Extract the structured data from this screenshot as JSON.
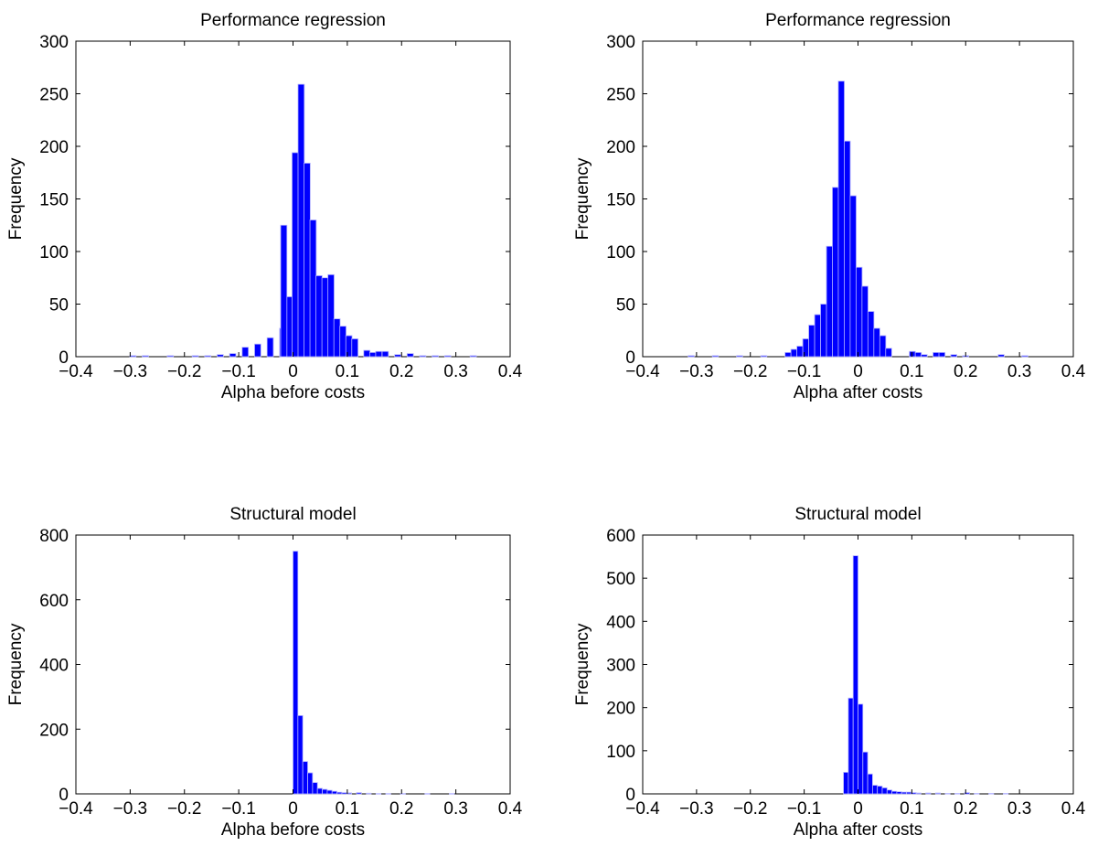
{
  "colors": {
    "bar_fill": "#0000ff",
    "bar_edge": "#b3b3ff",
    "axes": "#000000",
    "background": "#ffffff"
  },
  "chart_data": [
    {
      "type": "bar",
      "title": "Performance regression",
      "xlabel": "Alpha before costs",
      "ylabel": "Frequency",
      "xlim": [
        -0.4,
        0.4
      ],
      "ylim": [
        0,
        300
      ],
      "grid": false,
      "xticks": [
        "−0.4",
        "−0.3",
        "−0.2",
        "−0.1",
        "0",
        "0.1",
        "0.2",
        "0.3",
        "0.4"
      ],
      "yticks": [
        "0",
        "50",
        "100",
        "150",
        "200",
        "250",
        "300"
      ],
      "bins": [
        {
          "x": -0.295,
          "y": 1
        },
        {
          "x": -0.272,
          "y": 1
        },
        {
          "x": -0.226,
          "y": 1
        },
        {
          "x": -0.18,
          "y": 1
        },
        {
          "x": -0.157,
          "y": 1
        },
        {
          "x": -0.134,
          "y": 2
        },
        {
          "x": -0.111,
          "y": 3
        },
        {
          "x": -0.088,
          "y": 9
        },
        {
          "x": -0.065,
          "y": 12
        },
        {
          "x": -0.042,
          "y": 18
        },
        {
          "x": -0.019,
          "y": 27
        },
        {
          "x": -0.006,
          "y": 57
        },
        {
          "x": -0.017,
          "y": 125
        },
        {
          "x": 0.004,
          "y": 194
        },
        {
          "x": 0.015,
          "y": 259
        },
        {
          "x": 0.026,
          "y": 184
        },
        {
          "x": 0.037,
          "y": 130
        },
        {
          "x": 0.048,
          "y": 77
        },
        {
          "x": 0.059,
          "y": 75
        },
        {
          "x": 0.07,
          "y": 78
        },
        {
          "x": 0.081,
          "y": 36
        },
        {
          "x": 0.092,
          "y": 29
        },
        {
          "x": 0.103,
          "y": 20
        },
        {
          "x": 0.114,
          "y": 17
        },
        {
          "x": 0.136,
          "y": 6
        },
        {
          "x": 0.147,
          "y": 4
        },
        {
          "x": 0.158,
          "y": 5
        },
        {
          "x": 0.17,
          "y": 5
        },
        {
          "x": 0.193,
          "y": 2
        },
        {
          "x": 0.216,
          "y": 3
        },
        {
          "x": 0.239,
          "y": 1
        },
        {
          "x": 0.262,
          "y": 1
        },
        {
          "x": 0.285,
          "y": 1
        },
        {
          "x": 0.332,
          "y": 1
        }
      ]
    },
    {
      "type": "bar",
      "title": "Performance regression",
      "xlabel": "Alpha after costs",
      "ylabel": "Frequency",
      "xlim": [
        -0.4,
        0.4
      ],
      "ylim": [
        0,
        300
      ],
      "grid": false,
      "xticks": [
        "−0.4",
        "−0.3",
        "−0.2",
        "−0.1",
        "0",
        "0.1",
        "0.2",
        "0.3",
        "0.4"
      ],
      "yticks": [
        "0",
        "50",
        "100",
        "150",
        "200",
        "250",
        "300"
      ],
      "bins": [
        {
          "x": -0.31,
          "y": 1
        },
        {
          "x": -0.265,
          "y": 1
        },
        {
          "x": -0.22,
          "y": 1
        },
        {
          "x": -0.175,
          "y": 1
        },
        {
          "x": -0.13,
          "y": 4
        },
        {
          "x": -0.119,
          "y": 7
        },
        {
          "x": -0.108,
          "y": 10
        },
        {
          "x": -0.097,
          "y": 17
        },
        {
          "x": -0.086,
          "y": 30
        },
        {
          "x": -0.075,
          "y": 40
        },
        {
          "x": -0.064,
          "y": 50
        },
        {
          "x": -0.053,
          "y": 105
        },
        {
          "x": -0.042,
          "y": 161
        },
        {
          "x": -0.031,
          "y": 262
        },
        {
          "x": -0.02,
          "y": 205
        },
        {
          "x": -0.009,
          "y": 153
        },
        {
          "x": 0.002,
          "y": 85
        },
        {
          "x": 0.013,
          "y": 67
        },
        {
          "x": 0.024,
          "y": 43
        },
        {
          "x": 0.035,
          "y": 27
        },
        {
          "x": 0.046,
          "y": 20
        },
        {
          "x": 0.057,
          "y": 8
        },
        {
          "x": 0.101,
          "y": 5
        },
        {
          "x": 0.112,
          "y": 4
        },
        {
          "x": 0.123,
          "y": 2
        },
        {
          "x": 0.145,
          "y": 4
        },
        {
          "x": 0.156,
          "y": 4
        },
        {
          "x": 0.178,
          "y": 2
        },
        {
          "x": 0.2,
          "y": 1
        },
        {
          "x": 0.266,
          "y": 2
        },
        {
          "x": 0.31,
          "y": 1
        }
      ]
    },
    {
      "type": "bar",
      "title": "Structural model",
      "xlabel": "Alpha before costs",
      "ylabel": "Frequency",
      "xlim": [
        -0.4,
        0.4
      ],
      "ylim": [
        0,
        800
      ],
      "grid": false,
      "xticks": [
        "−0.4",
        "−0.3",
        "−0.2",
        "−0.1",
        "0",
        "0.1",
        "0.2",
        "0.3",
        "0.4"
      ],
      "yticks": [
        "0",
        "200",
        "400",
        "600",
        "800"
      ],
      "bins": [
        {
          "x": 0.0045,
          "y": 750
        },
        {
          "x": 0.0135,
          "y": 242
        },
        {
          "x": 0.0225,
          "y": 100
        },
        {
          "x": 0.0315,
          "y": 65
        },
        {
          "x": 0.0405,
          "y": 35
        },
        {
          "x": 0.0495,
          "y": 17
        },
        {
          "x": 0.0585,
          "y": 14
        },
        {
          "x": 0.0675,
          "y": 11
        },
        {
          "x": 0.0765,
          "y": 8
        },
        {
          "x": 0.0855,
          "y": 5
        },
        {
          "x": 0.0945,
          "y": 4
        },
        {
          "x": 0.1035,
          "y": 3
        },
        {
          "x": 0.1215,
          "y": 4
        },
        {
          "x": 0.1395,
          "y": 2
        },
        {
          "x": 0.1575,
          "y": 1
        },
        {
          "x": 0.1755,
          "y": 1
        },
        {
          "x": 0.2025,
          "y": 1
        },
        {
          "x": 0.2475,
          "y": 1
        },
        {
          "x": 0.2925,
          "y": 1
        }
      ]
    },
    {
      "type": "bar",
      "title": "Structural model",
      "xlabel": "Alpha after costs",
      "ylabel": "Frequency",
      "xlim": [
        -0.4,
        0.4
      ],
      "ylim": [
        0,
        600
      ],
      "grid": false,
      "xticks": [
        "−0.4",
        "−0.3",
        "−0.2",
        "−0.1",
        "0",
        "0.1",
        "0.2",
        "0.3",
        "0.4"
      ],
      "yticks": [
        "0",
        "100",
        "200",
        "300",
        "400",
        "500",
        "600"
      ],
      "bins": [
        {
          "x": -0.0225,
          "y": 50
        },
        {
          "x": -0.0135,
          "y": 222
        },
        {
          "x": -0.0045,
          "y": 552
        },
        {
          "x": 0.0045,
          "y": 208
        },
        {
          "x": 0.0135,
          "y": 97
        },
        {
          "x": 0.0225,
          "y": 46
        },
        {
          "x": 0.0315,
          "y": 20
        },
        {
          "x": 0.0405,
          "y": 18
        },
        {
          "x": 0.0495,
          "y": 14
        },
        {
          "x": 0.0585,
          "y": 9
        },
        {
          "x": 0.0675,
          "y": 6
        },
        {
          "x": 0.0765,
          "y": 5
        },
        {
          "x": 0.0855,
          "y": 4
        },
        {
          "x": 0.0945,
          "y": 4
        },
        {
          "x": 0.1035,
          "y": 3
        },
        {
          "x": 0.1125,
          "y": 2
        },
        {
          "x": 0.1305,
          "y": 2
        },
        {
          "x": 0.1485,
          "y": 2
        },
        {
          "x": 0.1665,
          "y": 1
        },
        {
          "x": 0.1845,
          "y": 1
        },
        {
          "x": 0.2025,
          "y": 3
        },
        {
          "x": 0.2205,
          "y": 1
        },
        {
          "x": 0.2475,
          "y": 1
        },
        {
          "x": 0.2745,
          "y": 1
        }
      ]
    }
  ]
}
